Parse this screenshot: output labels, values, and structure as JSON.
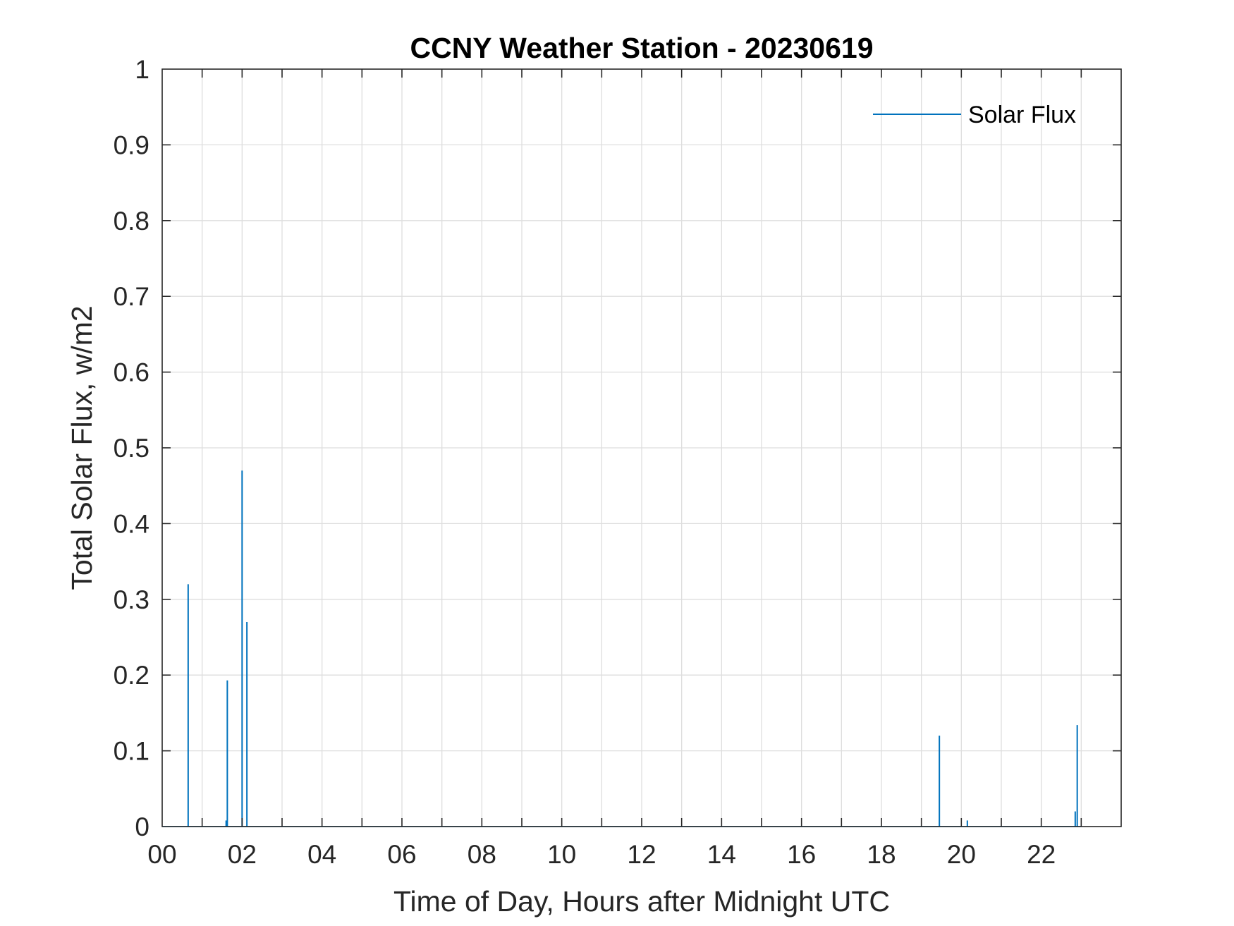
{
  "chart_data": {
    "type": "line",
    "title": "CCNY Weather Station - 20230619",
    "xlabel": "Time of Day, Hours after Midnight UTC",
    "ylabel": "Total Solar Flux, w/m2",
    "xlim": [
      0,
      24
    ],
    "ylim": [
      0,
      1
    ],
    "grid": true,
    "legend_position": "top-right",
    "x_tick_values": [
      0,
      2,
      4,
      6,
      8,
      10,
      12,
      14,
      16,
      18,
      20,
      22
    ],
    "x_tick_labels": [
      "00",
      "02",
      "04",
      "06",
      "08",
      "10",
      "12",
      "14",
      "16",
      "18",
      "20",
      "22"
    ],
    "x_minor_grid_step": 1,
    "y_tick_values": [
      0,
      0.1,
      0.2,
      0.3,
      0.4,
      0.5,
      0.6,
      0.7,
      0.8,
      0.9,
      1
    ],
    "y_tick_labels": [
      "0",
      "0.1",
      "0.2",
      "0.3",
      "0.4",
      "0.5",
      "0.6",
      "0.7",
      "0.8",
      "0.9",
      "1"
    ],
    "series": [
      {
        "name": "Solar Flux",
        "color": "#0072BD",
        "spikes": [
          {
            "x": 0.65,
            "y": 0.32
          },
          {
            "x": 1.6,
            "y": 0.008
          },
          {
            "x": 1.63,
            "y": 0.193
          },
          {
            "x": 2.0,
            "y": 0.47
          },
          {
            "x": 2.12,
            "y": 0.27
          },
          {
            "x": 19.45,
            "y": 0.12
          },
          {
            "x": 20.15,
            "y": 0.008
          },
          {
            "x": 22.85,
            "y": 0.02
          },
          {
            "x": 22.9,
            "y": 0.134
          }
        ]
      }
    ]
  }
}
